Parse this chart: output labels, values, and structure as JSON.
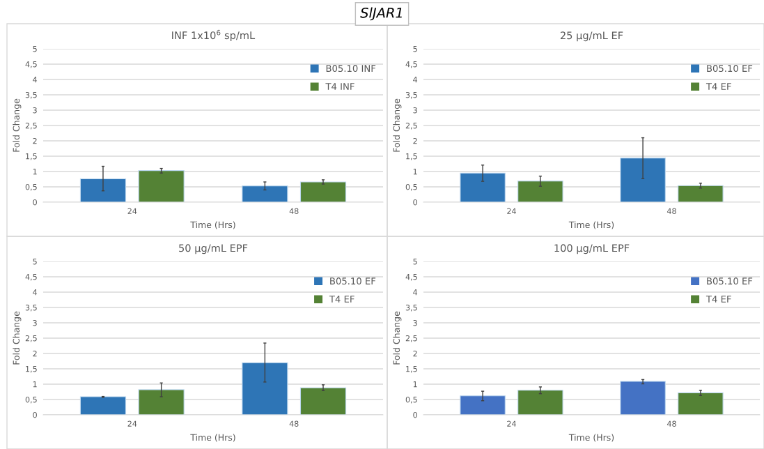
{
  "chart_data": [
    {
      "type": "bar",
      "title": "INF 1x10$^{6}$ sp/mL",
      "xlabel": "Time (Hrs)",
      "ylabel": "Fold Change",
      "annotations": [
        "SlJAR1"
      ],
      "categories": [
        "24",
        "48"
      ],
      "series": [
        {
          "name": "B05.10 INF",
          "color": "#2e75b6",
          "values": [
            0.76,
            0.53
          ],
          "errors": [
            [
              0.37,
              1.17
            ],
            [
              0.4,
              0.66
            ]
          ]
        },
        {
          "name": "T4 INF",
          "color": "#548235",
          "values": [
            1.03,
            0.66
          ],
          "errors": [
            [
              0.95,
              1.1
            ],
            [
              0.59,
              0.73
            ]
          ]
        }
      ],
      "ylim": [
        0,
        5
      ],
      "yticks": [
        0,
        {
          "value": 0.5,
          "label": "0,5"
        },
        1,
        {
          "value": 1.5,
          "label": "1,5"
        },
        2,
        {
          "value": 2.5,
          "label": "2,5"
        },
        3,
        {
          "value": 3.5,
          "label": "3,5"
        },
        4,
        {
          "value": 4.5,
          "label": "4,5"
        },
        5
      ],
      "grid": "y",
      "legend": "top right"
    },
    {
      "type": "bar",
      "title": "25 µg/mL EF",
      "xlabel": "Time (Hrs)",
      "ylabel": "Fold Change",
      "categories": [
        "24",
        "48"
      ],
      "series": [
        {
          "name": "B05.10 EF",
          "color": "#2e75b6",
          "values": [
            0.95,
            1.44
          ],
          "errors": [
            [
              0.68,
              1.21
            ],
            [
              0.77,
              2.1
            ]
          ]
        },
        {
          "name": "T4 EF",
          "color": "#548235",
          "values": [
            0.69,
            0.54
          ],
          "errors": [
            [
              0.52,
              0.85
            ],
            [
              0.46,
              0.62
            ]
          ]
        }
      ],
      "ylim": [
        0,
        5
      ],
      "yticks": [
        0,
        {
          "value": 0.5,
          "label": "0,5"
        },
        1,
        {
          "value": 1.5,
          "label": "1,5"
        },
        2,
        {
          "value": 2.5,
          "label": "2,5"
        },
        3,
        {
          "value": 3.5,
          "label": "3,5"
        },
        4,
        {
          "value": 4.5,
          "label": "4,5"
        },
        5
      ],
      "grid": "y",
      "legend": "top right"
    },
    {
      "type": "bar",
      "title": "50 µg/mL EPF",
      "xlabel": "Time (Hrs)",
      "ylabel": "Fold Change",
      "categories": [
        "24",
        "48"
      ],
      "series": [
        {
          "name": "B05.10 EF",
          "color": "#2e75b6",
          "values": [
            0.59,
            1.7
          ],
          "errors": [
            [
              0.57,
              0.6
            ],
            [
              1.07,
              2.34
            ]
          ]
        },
        {
          "name": "T4 EF",
          "color": "#548235",
          "values": [
            0.82,
            0.88
          ],
          "errors": [
            [
              0.59,
              1.04
            ],
            [
              0.79,
              0.98
            ]
          ]
        }
      ],
      "ylim": [
        0,
        5
      ],
      "yticks": [
        0,
        {
          "value": 0.5,
          "label": "0,5"
        },
        1,
        {
          "value": 1.5,
          "label": "1,5"
        },
        2,
        {
          "value": 2.5,
          "label": "2,5"
        },
        3,
        {
          "value": 3.5,
          "label": "3,5"
        },
        4,
        {
          "value": 4.5,
          "label": "4,5"
        },
        5
      ],
      "grid": "y",
      "legend": "top right"
    },
    {
      "type": "bar",
      "title": "100 µg/mL EPF",
      "xlabel": "Time (Hrs)",
      "ylabel": "Fold Change",
      "categories": [
        "24",
        "48"
      ],
      "series": [
        {
          "name": "B05.10 EF",
          "color": "#4472c4",
          "values": [
            0.62,
            1.09
          ],
          "errors": [
            [
              0.46,
              0.77
            ],
            [
              1.01,
              1.15
            ]
          ]
        },
        {
          "name": "T4 EF",
          "color": "#548235",
          "values": [
            0.8,
            0.72
          ],
          "errors": [
            [
              0.69,
              0.91
            ],
            [
              0.63,
              0.8
            ]
          ]
        }
      ],
      "ylim": [
        0,
        5
      ],
      "yticks": [
        0,
        {
          "value": 0.5,
          "label": "0,5"
        },
        1,
        {
          "value": 1.5,
          "label": "1,5"
        },
        2,
        {
          "value": 2.5,
          "label": "2,5"
        },
        3,
        {
          "value": 3.5,
          "label": "3,5"
        },
        4,
        {
          "value": 4.5,
          "label": "4,5"
        },
        5
      ],
      "grid": "y",
      "legend": "top right"
    }
  ]
}
